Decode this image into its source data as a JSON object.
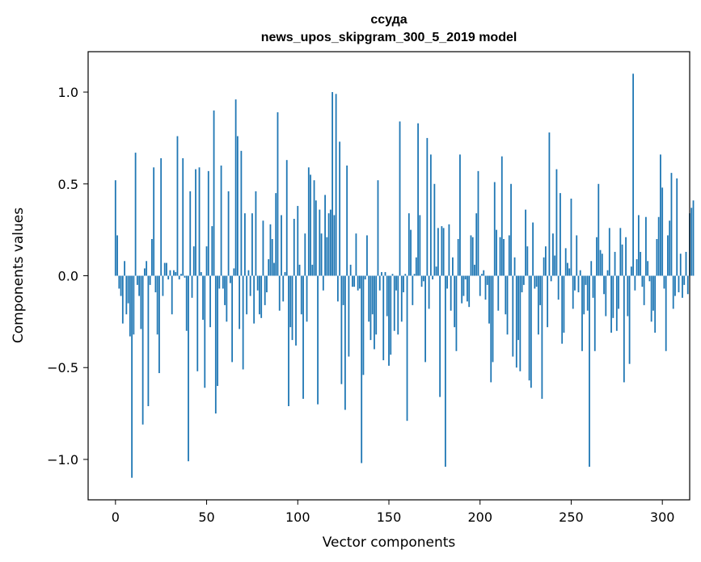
{
  "chart_data": {
    "type": "bar",
    "title_lines": [
      "ссуда",
      "news_upos_skipgram_300_5_2019 model"
    ],
    "xlabel": "Vector components",
    "ylabel": "Components values",
    "xlim": [
      -15,
      315
    ],
    "ylim": [
      -1.22,
      1.22
    ],
    "xticks": [
      0,
      50,
      100,
      150,
      200,
      250,
      300
    ],
    "xtick_labels": [
      "0",
      "50",
      "100",
      "150",
      "200",
      "250",
      "300"
    ],
    "yticks": [
      -1.0,
      -0.5,
      0.0,
      0.5,
      1.0
    ],
    "ytick_labels": [
      "−1.0",
      "−0.5",
      "0.0",
      "0.5",
      "1.0"
    ],
    "bar_color": "#1f77b4",
    "x_start": 0,
    "values": [
      0.52,
      0.22,
      -0.07,
      -0.11,
      -0.26,
      0.08,
      -0.21,
      -0.15,
      -0.33,
      -1.1,
      -0.32,
      0.67,
      -0.05,
      -0.11,
      -0.29,
      -0.81,
      0.04,
      0.08,
      -0.71,
      -0.05,
      0.2,
      0.59,
      -0.09,
      -0.32,
      -0.53,
      0.64,
      -0.11,
      0.07,
      0.07,
      -0.02,
      0.03,
      -0.21,
      0.03,
      0.02,
      0.76,
      -0.02,
      0.01,
      0.64,
      -0.01,
      -0.3,
      -1.01,
      0.46,
      -0.12,
      0.16,
      0.58,
      -0.52,
      0.59,
      0.02,
      -0.24,
      -0.61,
      0.16,
      0.57,
      -0.28,
      0.27,
      0.9,
      -0.75,
      -0.6,
      -0.07,
      0.6,
      -0.07,
      -0.16,
      -0.25,
      0.46,
      -0.04,
      -0.47,
      0.04,
      0.96,
      0.76,
      -0.29,
      0.68,
      -0.51,
      0.34,
      -0.21,
      0.03,
      -0.11,
      0.34,
      -0.26,
      0.46,
      -0.08,
      -0.21,
      -0.23,
      0.3,
      -0.16,
      -0.09,
      0.09,
      0.28,
      0.2,
      0.07,
      0.45,
      0.89,
      -0.19,
      0.33,
      -0.14,
      0.02,
      0.63,
      -0.71,
      -0.28,
      -0.35,
      0.31,
      -0.38,
      0.38,
      0.06,
      -0.21,
      -0.67,
      0.23,
      -0.25,
      0.59,
      0.55,
      0.06,
      0.52,
      0.41,
      -0.7,
      0.36,
      0.23,
      -0.08,
      0.44,
      0.21,
      0.34,
      0.36,
      1.0,
      0.33,
      0.99,
      -0.14,
      0.73,
      -0.59,
      -0.16,
      -0.73,
      0.6,
      -0.44,
      0.06,
      -0.06,
      -0.06,
      0.23,
      -0.08,
      -0.07,
      -1.02,
      -0.54,
      -0.02,
      0.22,
      -0.25,
      -0.35,
      -0.21,
      -0.4,
      -0.32,
      0.52,
      -0.08,
      0.02,
      -0.46,
      0.02,
      -0.22,
      -0.49,
      -0.43,
      0.01,
      -0.3,
      -0.08,
      -0.32,
      0.84,
      -0.25,
      -0.09,
      0.01,
      -0.79,
      0.34,
      0.25,
      -0.16,
      0.01,
      0.1,
      0.83,
      0.33,
      -0.06,
      -0.03,
      -0.47,
      0.75,
      -0.18,
      0.66,
      -0.02,
      0.5,
      0.05,
      0.26,
      -0.66,
      0.27,
      0.26,
      -1.04,
      -0.07,
      0.28,
      -0.19,
      0.1,
      -0.28,
      -0.41,
      0.2,
      0.66,
      -0.15,
      -0.11,
      -0.02,
      -0.14,
      -0.17,
      0.22,
      0.21,
      0.06,
      0.34,
      0.57,
      -0.11,
      0.01,
      0.03,
      -0.13,
      -0.05,
      -0.26,
      -0.58,
      -0.47,
      0.51,
      0.25,
      -0.19,
      0.21,
      0.65,
      0.2,
      -0.21,
      -0.32,
      0.22,
      0.5,
      -0.44,
      0.1,
      -0.5,
      -0.35,
      -0.52,
      -0.09,
      -0.05,
      0.36,
      0.16,
      -0.57,
      -0.61,
      0.29,
      -0.07,
      -0.06,
      -0.32,
      -0.16,
      -0.67,
      0.1,
      0.16,
      -0.28,
      0.78,
      -0.03,
      0.23,
      0.11,
      0.58,
      -0.13,
      0.45,
      -0.37,
      -0.31,
      0.15,
      0.07,
      0.04,
      0.42,
      -0.18,
      -0.08,
      0.22,
      -0.09,
      0.03,
      -0.41,
      -0.21,
      -0.05,
      -0.19,
      -1.04,
      0.08,
      -0.12,
      -0.41,
      0.21,
      0.5,
      0.14,
      0.12,
      -0.1,
      -0.22,
      0.03,
      0.26,
      -0.31,
      -0.23,
      0.13,
      -0.3,
      -0.18,
      0.26,
      0.17,
      -0.58,
      0.21,
      -0.22,
      -0.48,
      0.05,
      1.1,
      -0.08,
      0.09,
      0.33,
      0.13,
      -0.06,
      -0.16,
      0.32,
      0.08,
      -0.03,
      -0.25,
      -0.19,
      -0.31,
      0.2,
      0.32,
      0.66,
      0.48,
      -0.07,
      -0.41,
      0.22,
      0.3,
      0.56,
      -0.18,
      -0.11,
      0.53,
      -0.09,
      0.12,
      -0.12,
      -0.05,
      0.13,
      -0.1,
      0.34,
      0.37,
      0.41
    ]
  }
}
